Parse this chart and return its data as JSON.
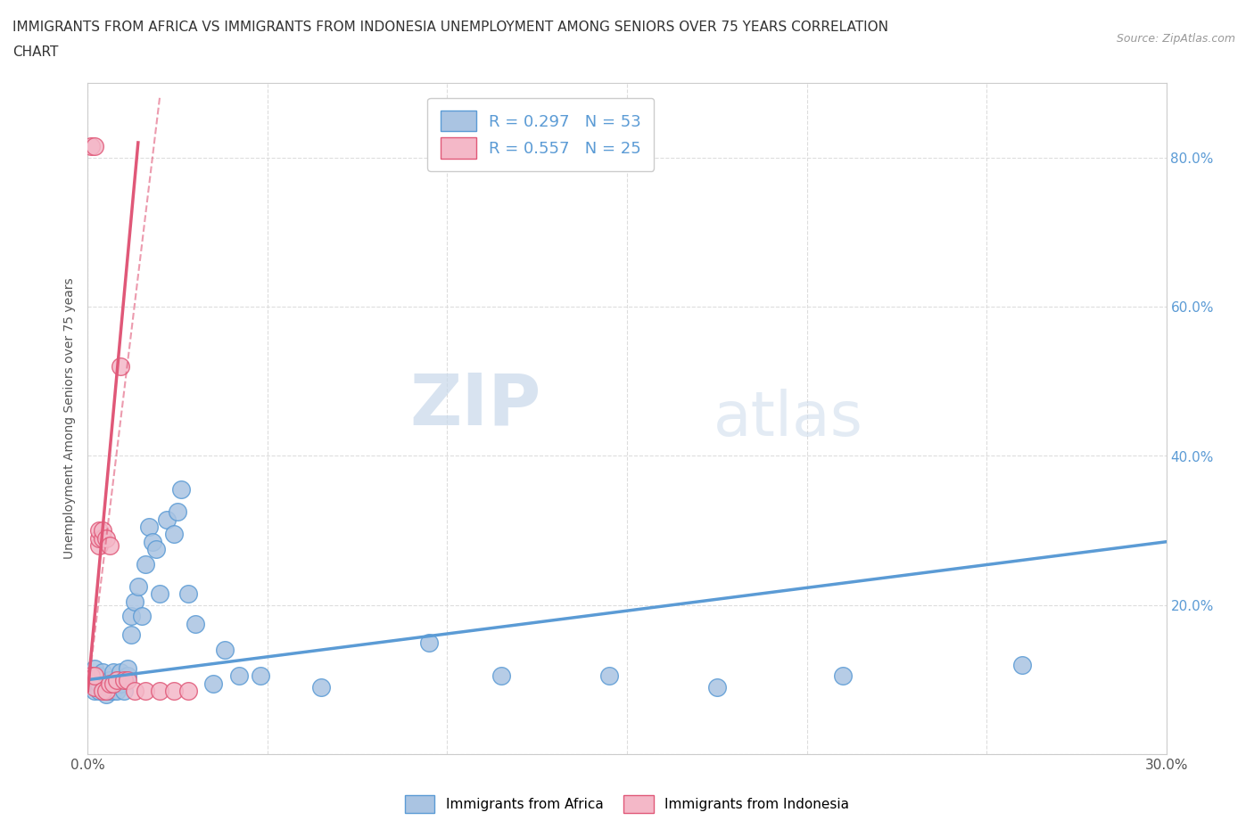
{
  "title_line1": "IMMIGRANTS FROM AFRICA VS IMMIGRANTS FROM INDONESIA UNEMPLOYMENT AMONG SENIORS OVER 75 YEARS CORRELATION",
  "title_line2": "CHART",
  "source": "Source: ZipAtlas.com",
  "ylabel": "Unemployment Among Seniors over 75 years",
  "xlim": [
    0.0,
    0.3
  ],
  "ylim": [
    0.0,
    0.9
  ],
  "xticks": [
    0.0,
    0.05,
    0.1,
    0.15,
    0.2,
    0.25,
    0.3
  ],
  "xtick_labels": [
    "0.0%",
    "",
    "",
    "",
    "",
    "",
    "30.0%"
  ],
  "yticks": [
    0.0,
    0.2,
    0.4,
    0.6,
    0.8
  ],
  "ytick_labels_left": [
    "",
    "",
    "",
    "",
    ""
  ],
  "ytick_labels_right": [
    "",
    "20.0%",
    "40.0%",
    "60.0%",
    "80.0%"
  ],
  "africa_color": "#aac4e2",
  "africa_edge_color": "#5b9bd5",
  "indonesia_color": "#f4b8c8",
  "indonesia_edge_color": "#e05878",
  "africa_scatter_x": [
    0.001,
    0.001,
    0.002,
    0.002,
    0.003,
    0.003,
    0.003,
    0.004,
    0.004,
    0.004,
    0.005,
    0.005,
    0.005,
    0.006,
    0.006,
    0.007,
    0.007,
    0.007,
    0.008,
    0.008,
    0.009,
    0.009,
    0.01,
    0.01,
    0.011,
    0.011,
    0.012,
    0.012,
    0.013,
    0.014,
    0.015,
    0.016,
    0.017,
    0.018,
    0.019,
    0.02,
    0.022,
    0.024,
    0.025,
    0.026,
    0.028,
    0.03,
    0.035,
    0.038,
    0.042,
    0.048,
    0.065,
    0.095,
    0.115,
    0.145,
    0.175,
    0.21,
    0.26
  ],
  "africa_scatter_y": [
    0.105,
    0.1,
    0.085,
    0.115,
    0.085,
    0.095,
    0.105,
    0.09,
    0.095,
    0.11,
    0.08,
    0.085,
    0.09,
    0.085,
    0.1,
    0.085,
    0.095,
    0.11,
    0.1,
    0.085,
    0.095,
    0.11,
    0.1,
    0.085,
    0.105,
    0.115,
    0.16,
    0.185,
    0.205,
    0.225,
    0.185,
    0.255,
    0.305,
    0.285,
    0.275,
    0.215,
    0.315,
    0.295,
    0.325,
    0.355,
    0.215,
    0.175,
    0.095,
    0.14,
    0.105,
    0.105,
    0.09,
    0.15,
    0.105,
    0.105,
    0.09,
    0.105,
    0.12
  ],
  "indonesia_scatter_x": [
    0.001,
    0.001,
    0.002,
    0.002,
    0.002,
    0.003,
    0.003,
    0.003,
    0.004,
    0.004,
    0.004,
    0.005,
    0.005,
    0.006,
    0.006,
    0.007,
    0.008,
    0.009,
    0.01,
    0.011,
    0.013,
    0.016,
    0.02,
    0.024,
    0.028
  ],
  "indonesia_scatter_y": [
    0.105,
    0.815,
    0.815,
    0.09,
    0.105,
    0.28,
    0.29,
    0.3,
    0.29,
    0.3,
    0.085,
    0.29,
    0.085,
    0.095,
    0.28,
    0.095,
    0.1,
    0.52,
    0.1,
    0.1,
    0.085,
    0.085,
    0.085,
    0.085,
    0.085
  ],
  "africa_R": 0.297,
  "africa_N": 53,
  "indonesia_R": 0.557,
  "indonesia_N": 25,
  "africa_trend_x0": 0.0,
  "africa_trend_x1": 0.3,
  "africa_trend_y0": 0.1,
  "africa_trend_y1": 0.285,
  "indonesia_trend_solid_x0": 0.0,
  "indonesia_trend_solid_x1": 0.014,
  "indonesia_trend_solid_y0": 0.085,
  "indonesia_trend_solid_y1": 0.82,
  "indonesia_trend_dash_x0": 0.0,
  "indonesia_trend_dash_x1": 0.02,
  "indonesia_trend_dash_y0": 0.085,
  "indonesia_trend_dash_y1": 0.88,
  "watermark_zip": "ZIP",
  "watermark_atlas": "atlas",
  "background_color": "#ffffff",
  "grid_color": "#dddddd",
  "grid_style": "--"
}
